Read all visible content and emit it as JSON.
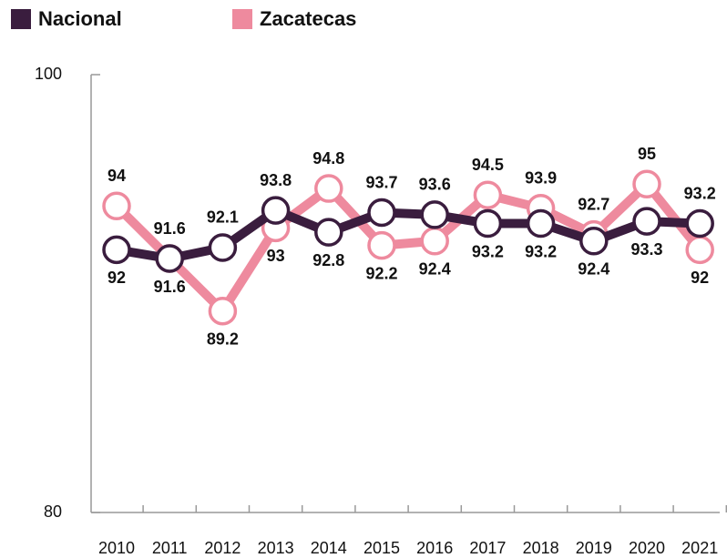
{
  "chart_data": {
    "type": "line",
    "categories": [
      "2010",
      "2011",
      "2012",
      "2013",
      "2014",
      "2015",
      "2016",
      "2017",
      "2018",
      "2019",
      "2020",
      "2021"
    ],
    "series": [
      {
        "name": "Nacional",
        "color": "#3a1d3e",
        "values": [
          92,
          91.6,
          92.1,
          93.8,
          92.8,
          93.7,
          93.6,
          93.2,
          93.2,
          92.4,
          93.3,
          93.2
        ]
      },
      {
        "name": "Zacatecas",
        "color": "#ee8a9e",
        "values": [
          94,
          91.6,
          89.2,
          93,
          94.8,
          92.2,
          92.4,
          94.5,
          93.9,
          92.7,
          95,
          92
        ]
      }
    ],
    "ylim": [
      80,
      100
    ],
    "yticks": [
      80,
      100
    ],
    "legend": "top-left"
  }
}
